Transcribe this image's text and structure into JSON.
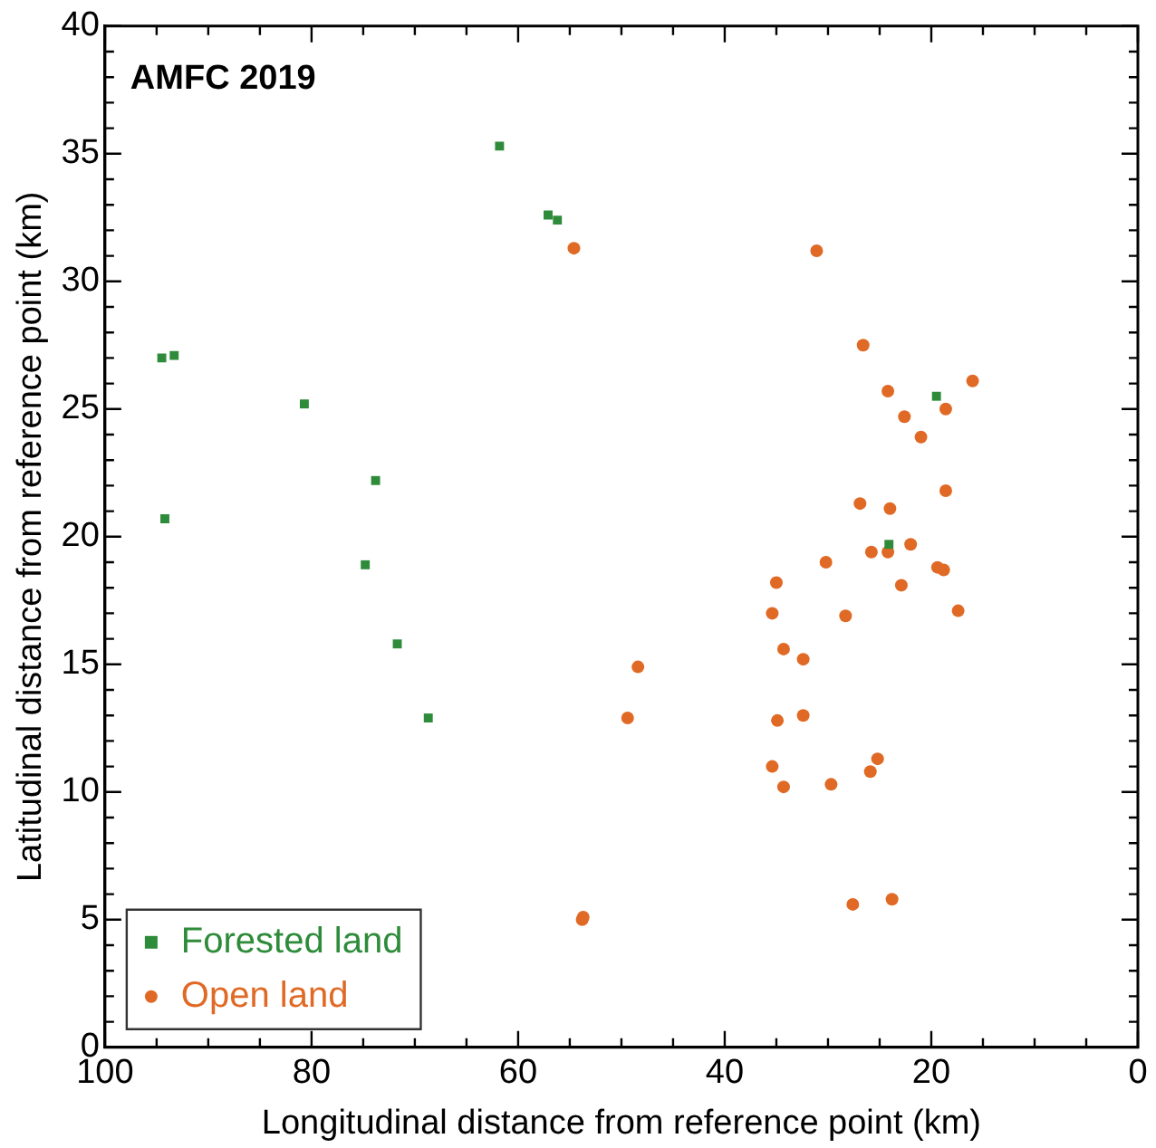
{
  "chart_data": {
    "type": "scatter",
    "title": "AMFC 2019",
    "xlabel": "Longitudinal distance from reference point (km)",
    "ylabel": "Latitudinal distance from reference point (km)",
    "xlim": [
      100,
      0
    ],
    "xticks": [
      100,
      {
        "value": 95,
        "label": null
      },
      {
        "value": 90,
        "label": null
      },
      {
        "value": 85,
        "label": null
      },
      80,
      {
        "value": 75,
        "label": null
      },
      {
        "value": 70,
        "label": null
      },
      {
        "value": 65,
        "label": null
      },
      60,
      {
        "value": 55,
        "label": null
      },
      {
        "value": 50,
        "label": null
      },
      {
        "value": 45,
        "label": null
      },
      40,
      {
        "value": 35,
        "label": null
      },
      {
        "value": 30,
        "label": null
      },
      {
        "value": 25,
        "label": null
      },
      20,
      {
        "value": 15,
        "label": null
      },
      {
        "value": 10,
        "label": null
      },
      {
        "value": 5,
        "label": null
      },
      0
    ],
    "ylim": [
      0,
      40
    ],
    "yticks": [
      0,
      {
        "value": 1,
        "label": null
      },
      {
        "value": 2,
        "label": null
      },
      {
        "value": 3,
        "label": null
      },
      {
        "value": 4,
        "label": null
      },
      5,
      {
        "value": 6,
        "label": null
      },
      {
        "value": 7,
        "label": null
      },
      {
        "value": 8,
        "label": null
      },
      {
        "value": 9,
        "label": null
      },
      10,
      {
        "value": 11,
        "label": null
      },
      {
        "value": 12,
        "label": null
      },
      {
        "value": 13,
        "label": null
      },
      {
        "value": 14,
        "label": null
      },
      15,
      {
        "value": 16,
        "label": null
      },
      {
        "value": 17,
        "label": null
      },
      {
        "value": 18,
        "label": null
      },
      {
        "value": 19,
        "label": null
      },
      20,
      {
        "value": 21,
        "label": null
      },
      {
        "value": 22,
        "label": null
      },
      {
        "value": 23,
        "label": null
      },
      {
        "value": 24,
        "label": null
      },
      25,
      {
        "value": 26,
        "label": null
      },
      {
        "value": 27,
        "label": null
      },
      {
        "value": 28,
        "label": null
      },
      {
        "value": 29,
        "label": null
      },
      30,
      {
        "value": 31,
        "label": null
      },
      {
        "value": 32,
        "label": null
      },
      {
        "value": 33,
        "label": null
      },
      {
        "value": 34,
        "label": null
      },
      35,
      {
        "value": 36,
        "label": null
      },
      {
        "value": 37,
        "label": null
      },
      {
        "value": 38,
        "label": null
      },
      {
        "value": 39,
        "label": null
      },
      40
    ],
    "grid": false,
    "legend": "bottom left",
    "series": [
      {
        "name": "Forested land",
        "color": "#2e8b3a",
        "marker": "square",
        "x": [
          61.8,
          57.1,
          56.2,
          94.5,
          93.3,
          80.7,
          73.8,
          94.2,
          74.8,
          71.7,
          68.7,
          19.5,
          24.1
        ],
        "values": [
          35.3,
          32.6,
          32.4,
          27.0,
          27.1,
          25.2,
          22.2,
          20.7,
          18.9,
          15.8,
          12.9,
          25.5,
          19.7
        ]
      },
      {
        "name": "Open land",
        "color": "#e06a25",
        "marker": "circle",
        "x": [
          54.6,
          48.4,
          49.4,
          53.8,
          53.7,
          31.1,
          26.6,
          16.0,
          24.2,
          18.6,
          22.6,
          21.0,
          18.6,
          26.9,
          24.0,
          22.0,
          30.2,
          25.8,
          24.2,
          19.4,
          18.8,
          35.0,
          22.9,
          35.4,
          28.3,
          17.4,
          34.3,
          32.4,
          34.9,
          32.4,
          35.4,
          25.2,
          25.9,
          34.3,
          29.7,
          27.6,
          23.8
        ],
        "values": [
          31.3,
          14.9,
          12.9,
          5.0,
          5.1,
          31.2,
          27.5,
          26.1,
          25.7,
          25.0,
          24.7,
          23.9,
          21.8,
          21.3,
          21.1,
          19.7,
          19.0,
          19.4,
          19.4,
          18.8,
          18.7,
          18.2,
          18.1,
          17.0,
          16.9,
          17.1,
          15.6,
          15.2,
          12.8,
          13.0,
          11.0,
          11.3,
          10.8,
          10.2,
          10.3,
          5.6,
          5.8
        ]
      }
    ]
  }
}
